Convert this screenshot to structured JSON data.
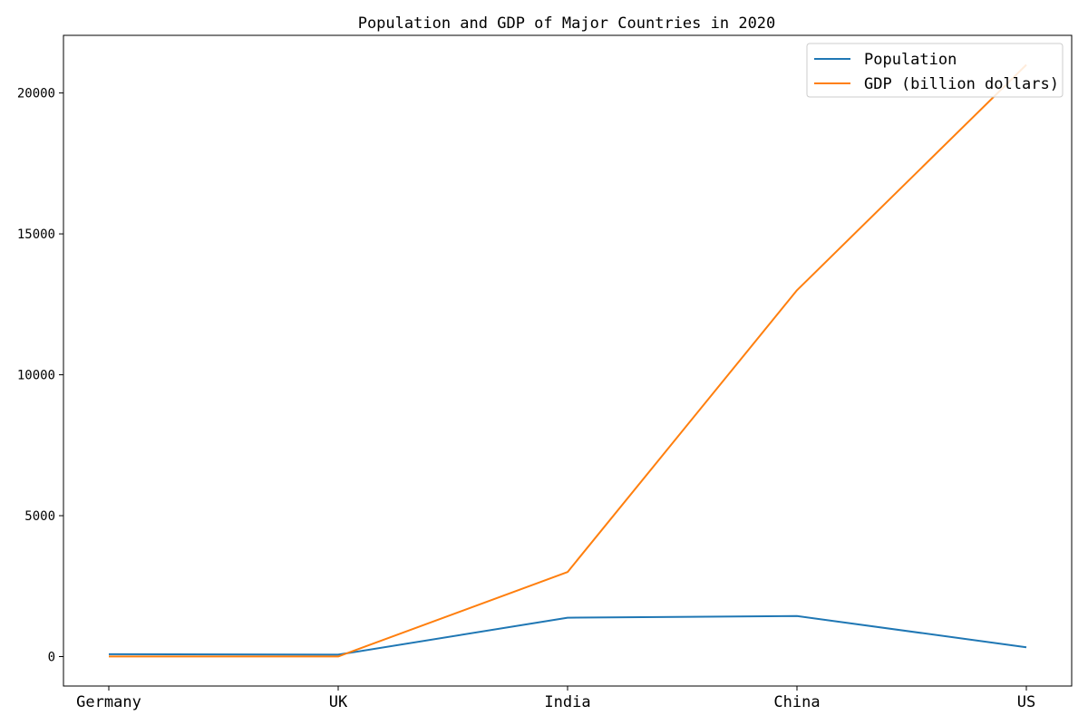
{
  "chart_data": {
    "type": "line",
    "title": "Population and GDP of Major Countries in 2020",
    "xlabel": "",
    "ylabel": "",
    "categories": [
      "Germany",
      "UK",
      "India",
      "China",
      "US"
    ],
    "series": [
      {
        "name": "Population",
        "values": [
          83,
          67,
          1380,
          1439,
          331
        ],
        "color": "#1f77b4"
      },
      {
        "name": "GDP (billion dollars)",
        "values": [
          3.8,
          2.7,
          3000,
          13000,
          21000
        ],
        "color": "#ff7f0e"
      }
    ],
    "ylim": [
      -1045,
      22045
    ],
    "yticks": [
      0,
      5000,
      10000,
      15000,
      20000
    ],
    "grid": false,
    "legend_position": "top-right"
  }
}
